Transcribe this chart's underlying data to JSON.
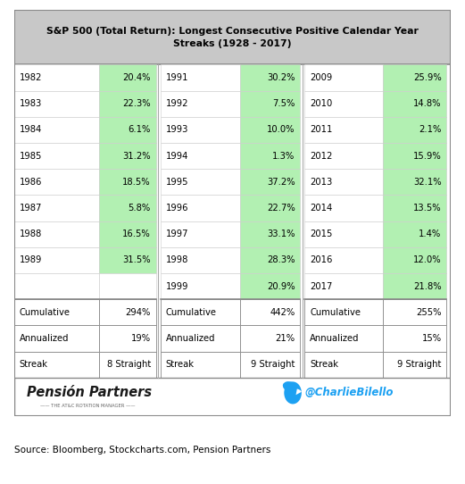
{
  "title_line1": "S&P 500 (Total Return): Longest Consecutive Positive Calendar Year",
  "title_line2": "Streaks (1928 - 2017)",
  "col1_years": [
    "1982",
    "1983",
    "1984",
    "1985",
    "1986",
    "1987",
    "1988",
    "1989",
    ""
  ],
  "col1_vals": [
    "20.4%",
    "22.3%",
    "6.1%",
    "31.2%",
    "18.5%",
    "5.8%",
    "16.5%",
    "31.5%",
    ""
  ],
  "col2_years": [
    "1991",
    "1992",
    "1993",
    "1994",
    "1995",
    "1996",
    "1997",
    "1998",
    "1999"
  ],
  "col2_vals": [
    "30.2%",
    "7.5%",
    "10.0%",
    "1.3%",
    "37.2%",
    "22.7%",
    "33.1%",
    "28.3%",
    "20.9%"
  ],
  "col3_years": [
    "2009",
    "2010",
    "2011",
    "2012",
    "2013",
    "2014",
    "2015",
    "2016",
    "2017"
  ],
  "col3_vals": [
    "25.9%",
    "14.8%",
    "2.1%",
    "15.9%",
    "32.1%",
    "13.5%",
    "1.4%",
    "12.0%",
    "21.8%"
  ],
  "sum_labels": [
    "Cumulative",
    "Annualized",
    "Streak"
  ],
  "col1_sum": [
    "294%",
    "19%",
    "8 Straight"
  ],
  "col2_sum": [
    "442%",
    "21%",
    "9 Straight"
  ],
  "col3_sum": [
    "255%",
    "15%",
    "9 Straight"
  ],
  "green": "#b2f0b2",
  "white": "#ffffff",
  "gray_title": "#c8c8c8",
  "border": "#888888",
  "light_border": "#cccccc",
  "source_text": "Source: Bloomberg, Stockcharts.com, Pension Partners",
  "pension_color": "#1a6b1a",
  "twitter_color": "#1DA1F2",
  "footer_sub": "THE AT&C ROTATION MANAGER"
}
